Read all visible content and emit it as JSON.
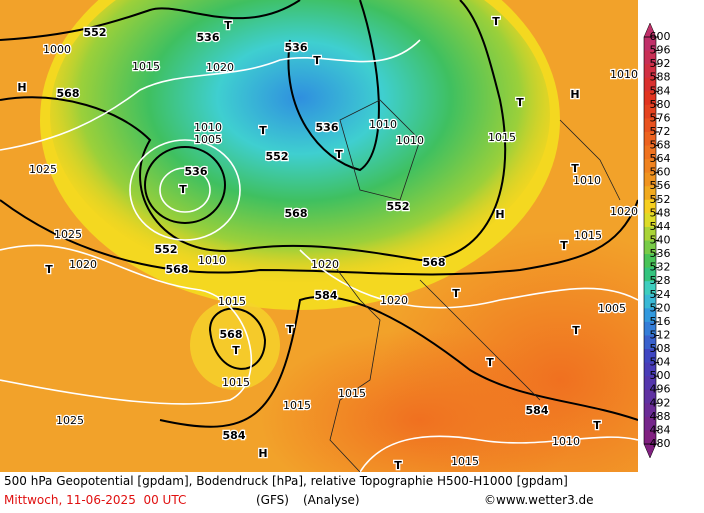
{
  "map": {
    "geopotential_labels": [
      "552",
      "536",
      "536",
      "568",
      "536",
      "552",
      "536",
      "568",
      "552",
      "552",
      "568",
      "568",
      "584",
      "568",
      "584",
      "584"
    ],
    "pressure_labels": [
      "1000",
      "1015",
      "1020",
      "1010",
      "1005",
      "1025",
      "1025",
      "1020",
      "1010",
      "1015",
      "1015",
      "1015",
      "1025",
      "1010",
      "1010",
      "1015",
      "1010",
      "1010",
      "1020",
      "1015",
      "1005",
      "1015",
      "1010",
      "1015",
      "1020",
      "1020"
    ],
    "centers": [
      "T",
      "T",
      "T",
      "T",
      "T",
      "T",
      "T",
      "T",
      "T",
      "T",
      "T",
      "H",
      "H",
      "H",
      "H",
      "T",
      "T",
      "T",
      "T",
      "T",
      "T"
    ]
  },
  "colorbar": {
    "ticks": [
      600,
      596,
      592,
      588,
      584,
      580,
      576,
      572,
      568,
      564,
      560,
      556,
      552,
      548,
      544,
      540,
      536,
      532,
      528,
      524,
      520,
      516,
      512,
      508,
      504,
      500,
      496,
      492,
      488,
      484,
      480
    ]
  },
  "caption": {
    "line1": "500 hPa Geopotential [gpdam], Bodendruck [hPa], relative Topographie H500-H1000 [gpdam]",
    "date": "Mittwoch, 11-06-2025  00 UTC",
    "model": "(GFS)",
    "run": "(Analyse)",
    "source": "©www.wetter3.de"
  }
}
